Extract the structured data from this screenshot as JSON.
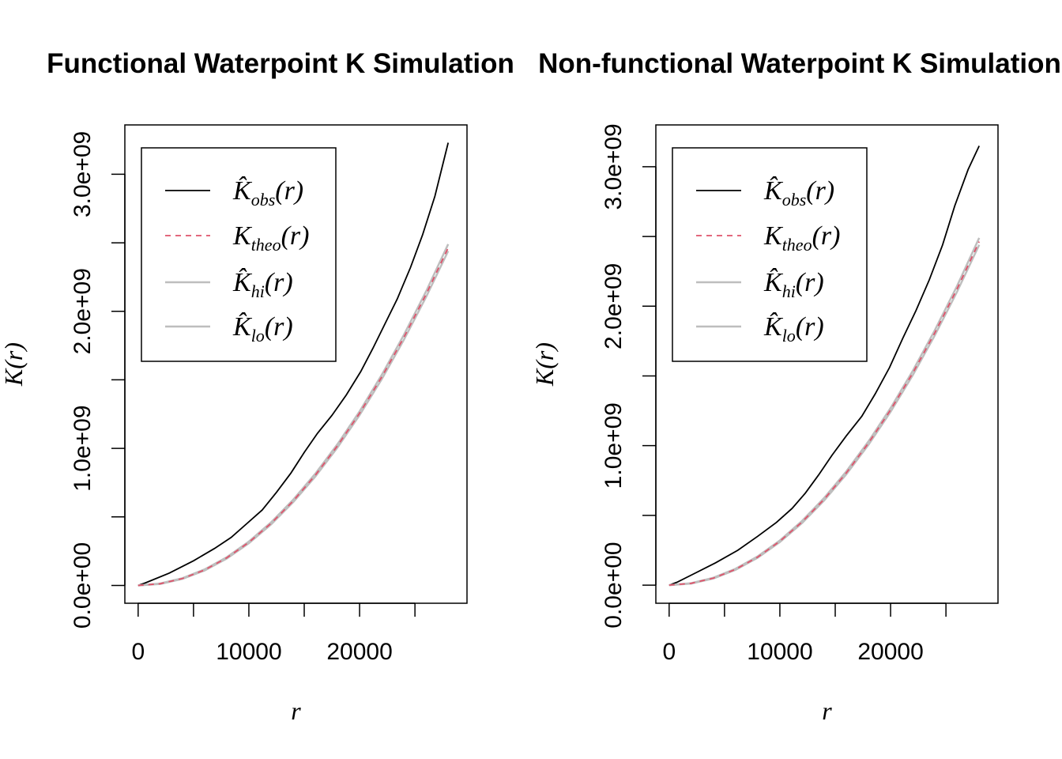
{
  "chart_data": [
    {
      "type": "line",
      "title": "Functional Waterpoint K Simulation",
      "xlabel": "r",
      "ylabel": "K(r)",
      "xlim": [
        -1200,
        29700
      ],
      "ylim": [
        -130000000,
        3360000000
      ],
      "x_ticks": [
        0,
        5000,
        10000,
        15000,
        20000,
        25000
      ],
      "x_tick_labels": [
        "0",
        "",
        "10000",
        "",
        "20000",
        ""
      ],
      "y_ticks": [
        0,
        500000000,
        1000000000,
        1500000000,
        2000000000,
        2500000000,
        3000000000
      ],
      "y_tick_labels": [
        "0.0e+00",
        "",
        "1.0e+09",
        "",
        "2.0e+09",
        "",
        "3.0e+09"
      ],
      "legend_position": "top-left",
      "series": [
        {
          "name": "K̂obs(r)",
          "name_main": "K̂",
          "name_sub": "obs",
          "color": "#000000",
          "style": "solid",
          "x": [
            0,
            700,
            2800,
            5000,
            6900,
            8400,
            9800,
            11200,
            12500,
            13800,
            15000,
            16200,
            17500,
            18800,
            20100,
            21200,
            22300,
            23400,
            24600,
            25700,
            26800,
            28000
          ],
          "y": [
            0,
            20000000,
            90000000,
            180000000,
            270000000,
            350000000,
            450000000,
            550000000,
            680000000,
            820000000,
            970000000,
            1110000000,
            1240000000,
            1390000000,
            1560000000,
            1730000000,
            1910000000,
            2090000000,
            2320000000,
            2560000000,
            2840000000,
            3230000000
          ]
        },
        {
          "name": "Ktheo(r)",
          "name_main": "K",
          "name_sub": "theo",
          "color": "#DF536B",
          "style": "dashed",
          "x": [
            0,
            2000,
            4000,
            6000,
            8000,
            10000,
            12000,
            14000,
            16000,
            18000,
            20000,
            22000,
            24000,
            26000,
            28000
          ],
          "y": [
            0,
            12600000,
            50300000,
            113100000,
            201100000,
            314200000,
            452400000,
            615800000,
            804200000,
            1017900000,
            1256600000,
            1520500000,
            1809600000,
            2123700000,
            2463000000
          ]
        },
        {
          "name": "K̂hi(r)",
          "name_main": "K̂",
          "name_sub": "hi",
          "color": "#BEBEBE",
          "style": "solid",
          "x": [
            0,
            2000,
            4000,
            6000,
            8000,
            10000,
            12000,
            14000,
            16000,
            18000,
            20000,
            22000,
            24000,
            26000,
            28000
          ],
          "y": [
            0,
            14000000,
            53000000,
            117000000,
            206000000,
            320000000,
            460000000,
            625000000,
            815000000,
            1030000000,
            1270000000,
            1536000000,
            1828000000,
            2145000000,
            2490000000
          ]
        },
        {
          "name": "K̂lo(r)",
          "name_main": "K̂",
          "name_sub": "lo",
          "color": "#BEBEBE",
          "style": "solid",
          "x": [
            0,
            2000,
            4000,
            6000,
            8000,
            10000,
            12000,
            14000,
            16000,
            18000,
            20000,
            22000,
            24000,
            26000,
            28000
          ],
          "y": [
            0,
            11000000,
            47500000,
            109000000,
            196000000,
            308000000,
            445000000,
            607000000,
            794000000,
            1006000000,
            1243000000,
            1505000000,
            1792000000,
            2104000000,
            2440000000
          ]
        }
      ]
    },
    {
      "type": "line",
      "title": "Non-functional Waterpoint K Simulation",
      "xlabel": "r",
      "ylabel": "K(r)",
      "xlim": [
        -1200,
        29700
      ],
      "ylim": [
        -130000000,
        3300000000
      ],
      "x_ticks": [
        0,
        5000,
        10000,
        15000,
        20000,
        25000
      ],
      "x_tick_labels": [
        "0",
        "",
        "10000",
        "",
        "20000",
        ""
      ],
      "y_ticks": [
        0,
        500000000,
        1000000000,
        1500000000,
        2000000000,
        2500000000,
        3000000000
      ],
      "y_tick_labels": [
        "0.0e+00",
        "",
        "1.0e+09",
        "",
        "2.0e+09",
        "",
        "3.0e+09"
      ],
      "legend_position": "top-left",
      "series": [
        {
          "name": "K̂obs(r)",
          "name_main": "K̂",
          "name_sub": "obs",
          "color": "#000000",
          "style": "solid",
          "x": [
            0,
            700,
            2200,
            4200,
            6200,
            8000,
            9700,
            11100,
            12300,
            13500,
            14700,
            16000,
            17400,
            18600,
            19900,
            21100,
            22300,
            23500,
            24700,
            25800,
            27000,
            28000
          ],
          "y": [
            0,
            20000000,
            80000000,
            160000000,
            250000000,
            350000000,
            450000000,
            550000000,
            660000000,
            790000000,
            930000000,
            1070000000,
            1210000000,
            1370000000,
            1560000000,
            1770000000,
            1970000000,
            2190000000,
            2440000000,
            2720000000,
            2980000000,
            3150000000
          ]
        },
        {
          "name": "Ktheo(r)",
          "name_main": "K",
          "name_sub": "theo",
          "color": "#DF536B",
          "style": "dashed",
          "x": [
            0,
            2000,
            4000,
            6000,
            8000,
            10000,
            12000,
            14000,
            16000,
            18000,
            20000,
            22000,
            24000,
            26000,
            28000
          ],
          "y": [
            0,
            12600000,
            50300000,
            113100000,
            201100000,
            314200000,
            452400000,
            615800000,
            804200000,
            1017900000,
            1256600000,
            1520500000,
            1809600000,
            2123700000,
            2463000000
          ]
        },
        {
          "name": "K̂hi(r)",
          "name_main": "K̂",
          "name_sub": "hi",
          "color": "#BEBEBE",
          "style": "solid",
          "x": [
            0,
            2000,
            4000,
            6000,
            8000,
            10000,
            12000,
            14000,
            16000,
            18000,
            20000,
            22000,
            24000,
            26000,
            28000
          ],
          "y": [
            0,
            14000000,
            53000000,
            117000000,
            206000000,
            320000000,
            460000000,
            625000000,
            815000000,
            1030000000,
            1270000000,
            1536000000,
            1828000000,
            2145000000,
            2490000000
          ]
        },
        {
          "name": "K̂lo(r)",
          "name_main": "K̂",
          "name_sub": "lo",
          "color": "#BEBEBE",
          "style": "solid",
          "x": [
            0,
            2000,
            4000,
            6000,
            8000,
            10000,
            12000,
            14000,
            16000,
            18000,
            20000,
            22000,
            24000,
            26000,
            28000
          ],
          "y": [
            0,
            11000000,
            47500000,
            109000000,
            196000000,
            308000000,
            445000000,
            607000000,
            794000000,
            1006000000,
            1243000000,
            1505000000,
            1792000000,
            2104000000,
            2440000000
          ]
        }
      ]
    }
  ]
}
